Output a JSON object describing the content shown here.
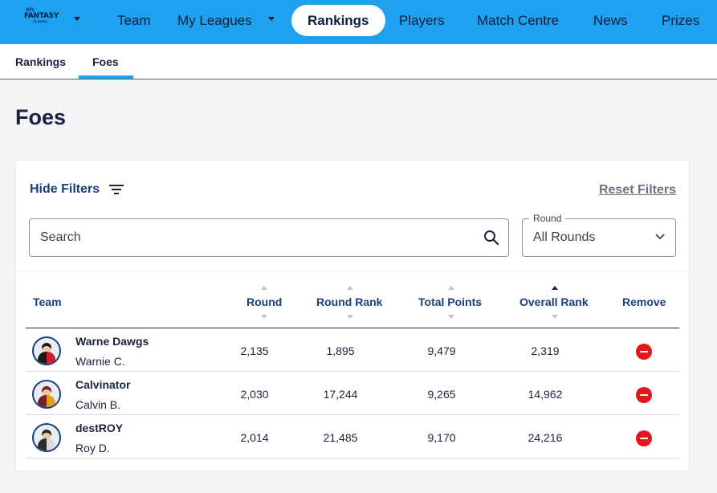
{
  "nav": {
    "logo": {
      "line1": "AFL",
      "line2": "FANTASY",
      "line3": "CLASSIC"
    },
    "items": [
      {
        "label": "Team"
      },
      {
        "label": "My Leagues"
      },
      {
        "label": "Rankings"
      },
      {
        "label": "Players"
      },
      {
        "label": "Match Centre"
      },
      {
        "label": "News"
      },
      {
        "label": "Prizes"
      }
    ],
    "active": "Rankings"
  },
  "subnav": {
    "tabs": [
      {
        "label": "Rankings"
      },
      {
        "label": "Foes"
      }
    ],
    "active": "Foes"
  },
  "page": {
    "title": "Foes"
  },
  "filters": {
    "hide_label": "Hide Filters",
    "reset_label": "Reset Filters",
    "search_placeholder": "Search",
    "round_label": "Round",
    "round_value": "All Rounds"
  },
  "table": {
    "headers": {
      "team": "Team",
      "round": "Round",
      "round_rank": "Round Rank",
      "total_points": "Total Points",
      "overall_rank": "Overall Rank",
      "remove": "Remove"
    },
    "sorted_by": "Overall Rank",
    "rows": [
      {
        "team": "Warne Dawgs",
        "coach": "Warnie C.",
        "round": "2,135",
        "round_rank": "1,895",
        "total_points": "9,479",
        "overall_rank": "2,319",
        "avatar_colors": [
          "#1b1b1b",
          "#c8202e"
        ]
      },
      {
        "team": "Calvinator",
        "coach": "Calvin B.",
        "round": "2,030",
        "round_rank": "17,244",
        "total_points": "9,265",
        "overall_rank": "14,962",
        "avatar_colors": [
          "#7a1f2b",
          "#e0a21a"
        ]
      },
      {
        "team": "destROY",
        "coach": "Roy D.",
        "round": "2,014",
        "round_rank": "21,485",
        "total_points": "9,170",
        "overall_rank": "24,216",
        "avatar_colors": [
          "#2b2b2b",
          "#d9d9d9"
        ]
      }
    ]
  },
  "colors": {
    "nav_bg": "#1ea2f0",
    "accent": "#1a3e7a",
    "remove": "#e3161b"
  }
}
